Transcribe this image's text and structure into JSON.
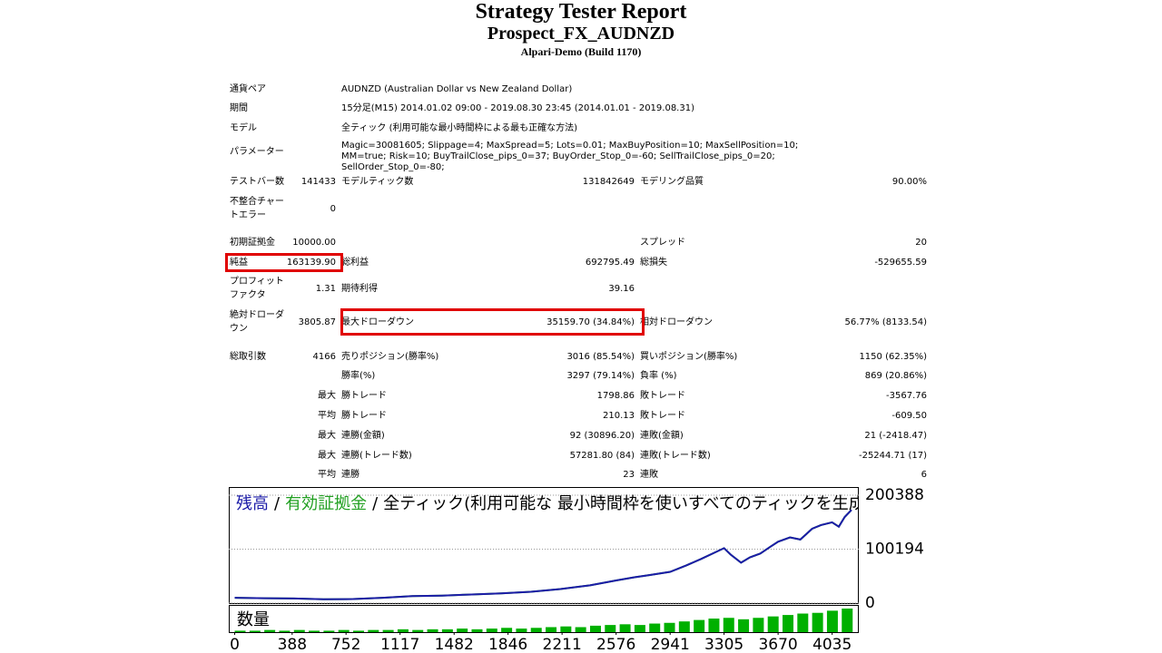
{
  "header": {
    "title": "Strategy Tester Report",
    "subtitle": "Prospect_FX_AUDNZD",
    "server": "Alpari-Demo (Build 1170)"
  },
  "info": [
    [
      "通貨ペア",
      "AUDNZD (Australian Dollar vs New Zealand Dollar)"
    ],
    [
      "期間",
      "15分足(M15) 2014.01.02 09:00 - 2019.08.30 23:45 (2014.01.01 - 2019.08.31)"
    ],
    [
      "モデル",
      "全ティック (利用可能な最小時間枠による最も正確な方法)"
    ],
    [
      "パラメーター",
      "Magic=30081605; Slippage=4; MaxSpread=5; Lots=0.01; MaxBuyPosition=10; MaxSellPosition=10; MM=true; Risk=10; BuyTrailClose_pips_0=37; BuyOrder_Stop_0=-60; SellTrailClose_pips_0=20; SellOrder_Stop_0=-80;"
    ]
  ],
  "stats": [
    [
      "テストバー数",
      "141433",
      "モデルティック数",
      "131842649",
      "モデリング品質",
      "90.00%"
    ],
    [
      "不整合チャートエラー",
      "0",
      null,
      null,
      null,
      null
    ],
    [
      "初期証拠金",
      "10000.00",
      null,
      null,
      "スプレッド",
      "20"
    ],
    [
      "純益",
      "163139.90",
      "総利益",
      "692795.49",
      "総損失",
      "-529655.59"
    ],
    [
      "プロフィットファクタ",
      "1.31",
      "期待利得",
      "39.16",
      null,
      null
    ],
    [
      "絶対ドローダウン",
      "3805.87",
      "最大ドローダウン",
      "35159.70 (34.84%)",
      "相対ドローダウン",
      "56.77% (8133.54)"
    ],
    [
      "総取引数",
      "4166",
      "売りポジション(勝率%)",
      "3016 (85.54%)",
      "買いポジション(勝率%)",
      "1150 (62.35%)"
    ],
    [
      null,
      null,
      "勝率(%)",
      "3297 (79.14%)",
      "負率 (%)",
      "869 (20.86%)"
    ],
    [
      null,
      "最大",
      "勝トレード",
      "1798.86",
      "敗トレード",
      "-3567.76"
    ],
    [
      null,
      "平均",
      "勝トレード",
      "210.13",
      "敗トレード",
      "-609.50"
    ],
    [
      null,
      "最大",
      "連勝(金額)",
      "92 (30896.20)",
      "連敗(金額)",
      "21 (-2418.47)"
    ],
    [
      null,
      "最大",
      "連勝(トレード数)",
      "57281.80 (84)",
      "連敗(トレード数)",
      "-25244.71 (17)"
    ],
    [
      null,
      "平均",
      "連勝",
      "23",
      "連敗",
      "6"
    ]
  ],
  "chart_data": {
    "type": "line",
    "separator": "/",
    "note": "全ティック(利用可能な 最小時間枠を使いすべてのティックを生成する、最も",
    "x": [
      0,
      200,
      400,
      600,
      800,
      1000,
      1200,
      1400,
      1600,
      1800,
      2000,
      2200,
      2400,
      2576,
      2700,
      2800,
      2941,
      3050,
      3150,
      3250,
      3305,
      3350,
      3420,
      3480,
      3550,
      3620,
      3670,
      3750,
      3820,
      3900,
      3960,
      4035,
      4080,
      4120,
      4166
    ],
    "series": [
      {
        "name": "有効証拠金",
        "color": "#22a022",
        "values": [
          10000,
          9000,
          8500,
          7000,
          7500,
          10000,
          13000,
          14000,
          16000,
          18000,
          21000,
          26000,
          33000,
          42000,
          48000,
          52000,
          58000,
          70000,
          82000,
          95000,
          102000,
          90000,
          75000,
          85000,
          92000,
          105000,
          114000,
          122000,
          118000,
          138000,
          145000,
          150000,
          142000,
          160000,
          173139
        ]
      },
      {
        "name": "残高",
        "color": "#1c1ca8",
        "values": [
          10000,
          9000,
          8500,
          7000,
          7500,
          10000,
          13000,
          14000,
          16000,
          18000,
          21000,
          26000,
          33000,
          42000,
          48000,
          52000,
          58000,
          70000,
          82000,
          95000,
          102000,
          90000,
          75000,
          85000,
          92000,
          105000,
          114000,
          122000,
          118000,
          138000,
          145000,
          150000,
          142000,
          160000,
          173139
        ]
      }
    ],
    "volume": {
      "name": "数量",
      "color": "#00b000",
      "x": [
        0,
        100,
        200,
        300,
        400,
        500,
        600,
        700,
        800,
        900,
        1000,
        1100,
        1200,
        1300,
        1400,
        1500,
        1600,
        1700,
        1800,
        1900,
        2000,
        2100,
        2200,
        2300,
        2400,
        2500,
        2600,
        2700,
        2800,
        2900,
        3000,
        3100,
        3200,
        3300,
        3400,
        3500,
        3600,
        3700,
        3800,
        3900,
        4000,
        4100
      ],
      "values": [
        0.02,
        0.02,
        0.03,
        0.02,
        0.03,
        0.02,
        0.02,
        0.03,
        0.02,
        0.03,
        0.03,
        0.04,
        0.03,
        0.04,
        0.04,
        0.05,
        0.04,
        0.05,
        0.06,
        0.05,
        0.06,
        0.07,
        0.08,
        0.07,
        0.09,
        0.1,
        0.11,
        0.1,
        0.12,
        0.13,
        0.15,
        0.17,
        0.19,
        0.2,
        0.18,
        0.2,
        0.22,
        0.24,
        0.26,
        0.27,
        0.3,
        0.33
      ]
    },
    "xlim": [
      -40,
      4215
    ],
    "xticks": [
      0,
      388,
      752,
      1117,
      1482,
      1846,
      2211,
      2576,
      2941,
      3305,
      3670,
      4035
    ],
    "ylim": [
      -1700,
      215500
    ],
    "yticks": [
      0,
      100194,
      200388
    ],
    "grid": true
  }
}
